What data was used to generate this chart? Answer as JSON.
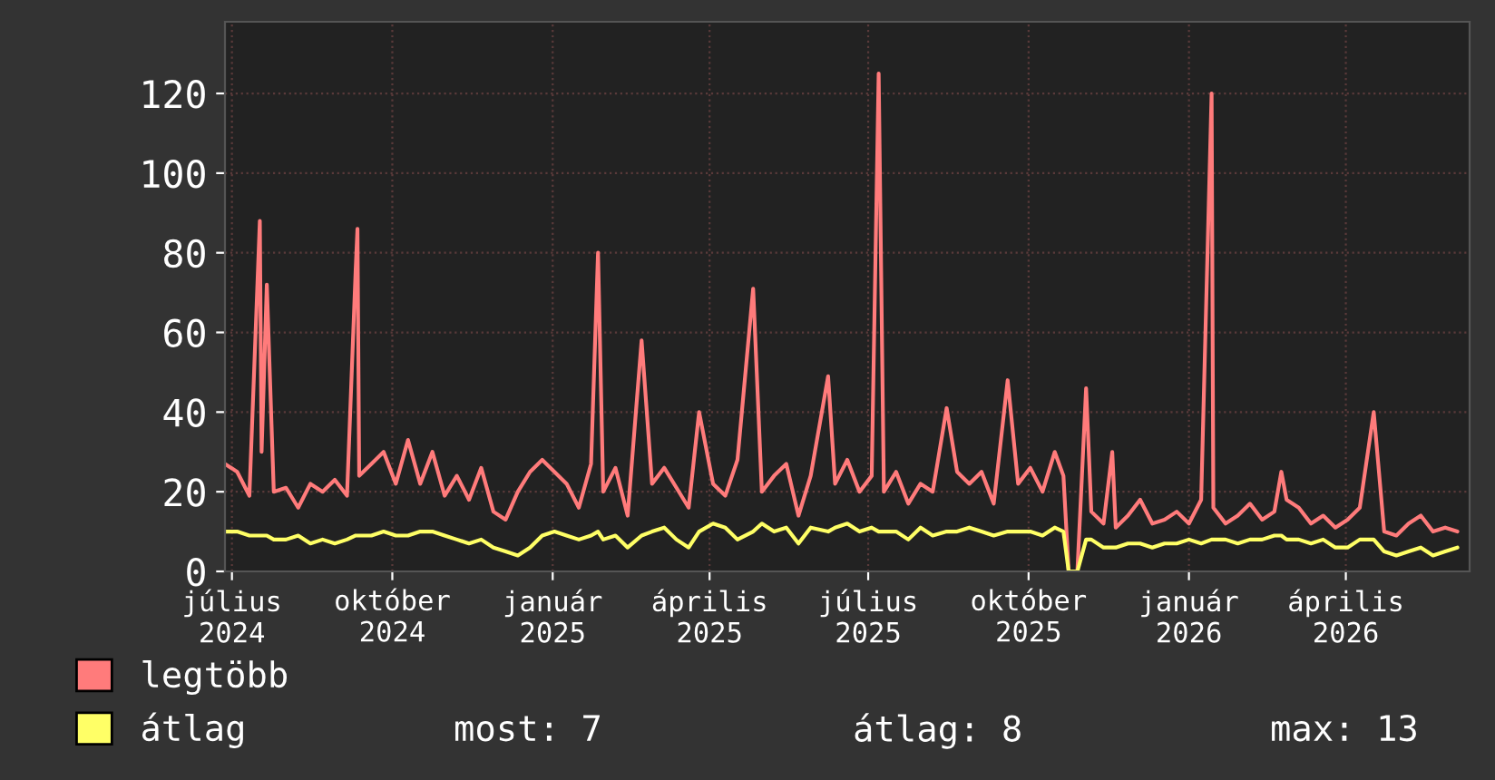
{
  "chart_data": {
    "type": "line",
    "x": [
      "2024-06-27",
      "2024-07-04",
      "2024-07-11",
      "2024-07-17",
      "2024-07-18",
      "2024-07-21",
      "2024-07-25",
      "2024-08-01",
      "2024-08-08",
      "2024-08-15",
      "2024-08-22",
      "2024-08-29",
      "2024-09-05",
      "2024-09-10",
      "2024-09-11",
      "2024-09-12",
      "2024-09-19",
      "2024-09-26",
      "2024-10-03",
      "2024-10-10",
      "2024-10-17",
      "2024-10-24",
      "2024-10-31",
      "2024-11-07",
      "2024-11-14",
      "2024-11-21",
      "2024-11-28",
      "2024-12-05",
      "2024-12-12",
      "2024-12-19",
      "2024-12-26",
      "2025-01-02",
      "2025-01-09",
      "2025-01-16",
      "2025-01-23",
      "2025-01-27",
      "2025-01-30",
      "2025-02-06",
      "2025-02-13",
      "2025-02-21",
      "2025-02-27",
      "2025-03-06",
      "2025-03-13",
      "2025-03-20",
      "2025-03-26",
      "2025-04-03",
      "2025-04-10",
      "2025-04-17",
      "2025-04-26",
      "2025-05-01",
      "2025-05-08",
      "2025-05-15",
      "2025-05-22",
      "2025-05-29",
      "2025-06-08",
      "2025-06-12",
      "2025-06-19",
      "2025-06-26",
      "2025-07-03",
      "2025-07-07",
      "2025-07-10",
      "2025-07-17",
      "2025-07-24",
      "2025-07-31",
      "2025-08-07",
      "2025-08-15",
      "2025-08-21",
      "2025-08-28",
      "2025-09-04",
      "2025-09-11",
      "2025-09-19",
      "2025-09-25",
      "2025-10-02",
      "2025-10-09",
      "2025-10-16",
      "2025-10-21",
      "2025-10-24",
      "2025-10-29",
      "2025-11-03",
      "2025-11-06",
      "2025-11-13",
      "2025-11-18",
      "2025-11-20",
      "2025-11-27",
      "2025-12-04",
      "2025-12-11",
      "2025-12-18",
      "2025-12-25",
      "2026-01-01",
      "2026-01-08",
      "2026-01-14",
      "2026-01-15",
      "2026-01-22",
      "2026-01-29",
      "2026-02-05",
      "2026-02-12",
      "2026-02-19",
      "2026-02-23",
      "2026-02-26",
      "2026-03-05",
      "2026-03-12",
      "2026-03-19",
      "2026-03-26",
      "2026-04-02",
      "2026-04-09",
      "2026-04-17",
      "2026-04-23",
      "2026-04-30",
      "2026-05-07",
      "2026-05-14",
      "2026-05-21",
      "2026-05-28",
      "2026-06-04"
    ],
    "series": [
      {
        "name": "legtöbb",
        "color": "#ff7b7b",
        "values": [
          27,
          25,
          19,
          88,
          30,
          72,
          20,
          21,
          16,
          22,
          20,
          23,
          19,
          76,
          86,
          24,
          27,
          30,
          22,
          33,
          22,
          30,
          19,
          24,
          18,
          26,
          15,
          13,
          20,
          25,
          28,
          25,
          22,
          16,
          27,
          80,
          20,
          26,
          14,
          58,
          22,
          26,
          21,
          16,
          40,
          22,
          19,
          28,
          71,
          20,
          24,
          27,
          14,
          24,
          49,
          22,
          28,
          20,
          24,
          125,
          20,
          25,
          17,
          22,
          20,
          41,
          25,
          22,
          25,
          17,
          48,
          22,
          26,
          20,
          30,
          24,
          0,
          0,
          46,
          15,
          12,
          30,
          11,
          14,
          18,
          12,
          13,
          15,
          12,
          18,
          120,
          16,
          12,
          14,
          17,
          13,
          15,
          25,
          18,
          16,
          12,
          14,
          11,
          13,
          16,
          40,
          10,
          9,
          12,
          14,
          10,
          11,
          10
        ]
      },
      {
        "name": "átlag",
        "color": "#ffff66",
        "values": [
          10,
          10,
          9,
          9,
          9,
          9,
          8,
          8,
          9,
          7,
          8,
          7,
          8,
          9,
          9,
          9,
          9,
          10,
          9,
          9,
          10,
          10,
          9,
          8,
          7,
          8,
          6,
          5,
          4,
          6,
          9,
          10,
          9,
          8,
          9,
          10,
          8,
          9,
          6,
          9,
          10,
          11,
          8,
          6,
          10,
          12,
          11,
          8,
          10,
          12,
          10,
          11,
          7,
          11,
          10,
          11,
          12,
          10,
          11,
          10,
          10,
          10,
          8,
          11,
          9,
          10,
          10,
          11,
          10,
          9,
          10,
          10,
          10,
          9,
          11,
          10,
          0,
          0,
          8,
          8,
          6,
          6,
          6,
          7,
          7,
          6,
          7,
          7,
          8,
          7,
          8,
          8,
          8,
          7,
          8,
          8,
          9,
          9,
          8,
          8,
          7,
          8,
          6,
          6,
          8,
          8,
          5,
          4,
          5,
          6,
          4,
          5,
          6
        ]
      }
    ],
    "xlim": [
      "2024-06-27",
      "2026-06-11"
    ],
    "xticks": [
      {
        "value": "2024-07-01",
        "label": "július 2024"
      },
      {
        "value": "2024-10-01",
        "label": "október 2024"
      },
      {
        "value": "2025-01-01",
        "label": "január 2025"
      },
      {
        "value": "2025-04-01",
        "label": "április 2025"
      },
      {
        "value": "2025-07-01",
        "label": "július 2025"
      },
      {
        "value": "2025-10-01",
        "label": "október 2025"
      },
      {
        "value": "2026-01-01",
        "label": "január 2026"
      },
      {
        "value": "2026-04-01",
        "label": "április 2026"
      }
    ],
    "ylim": [
      0,
      138
    ],
    "yticks": [
      0,
      20,
      40,
      60,
      80,
      100,
      120
    ],
    "grid": true,
    "legend": "bottom left",
    "annotations": [
      "most: 7",
      "átlag: 8",
      "max: 13"
    ]
  }
}
